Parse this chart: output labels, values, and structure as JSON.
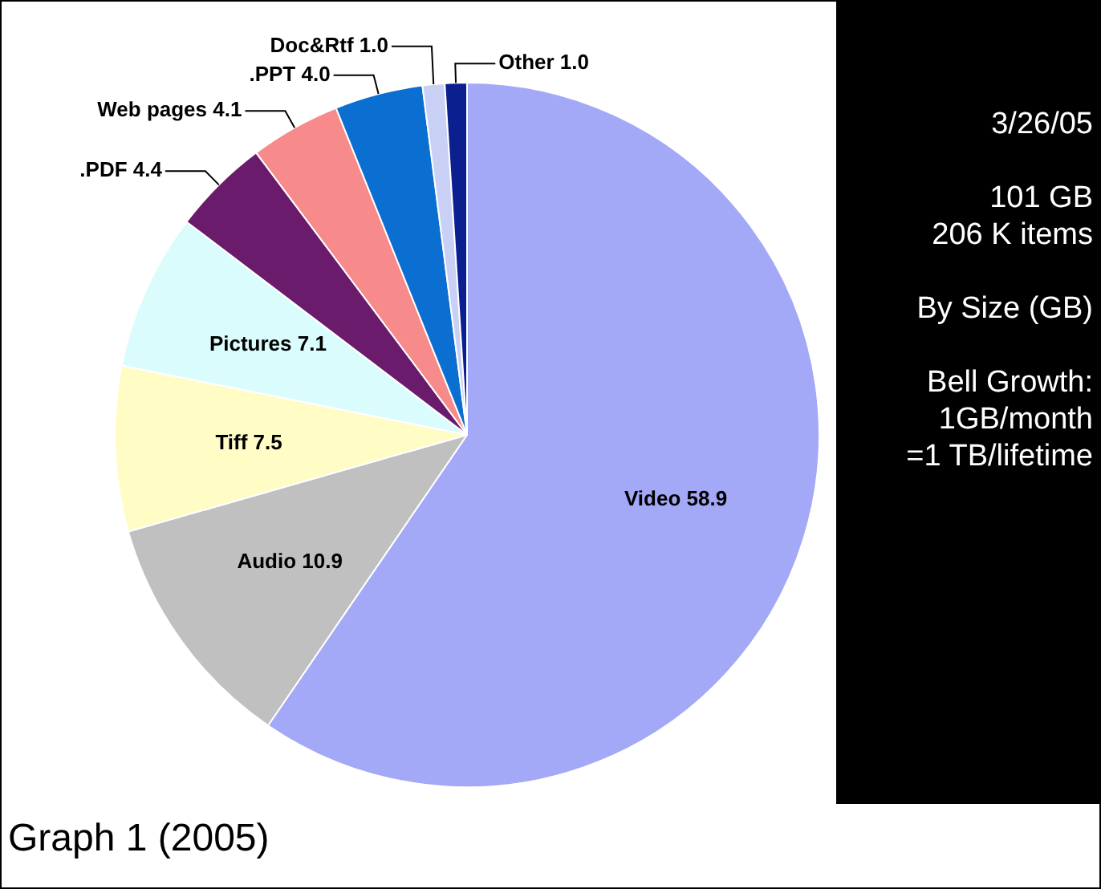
{
  "chart_data": {
    "type": "pie",
    "categories": [
      "Video",
      "Audio",
      "Tiff",
      "Pictures",
      ".PDF",
      "Web pages",
      ".PPT",
      "Doc&Rtf",
      "Other"
    ],
    "values": [
      58.9,
      10.9,
      7.5,
      7.1,
      4.4,
      4.1,
      4.0,
      1.0,
      1.0
    ],
    "colors": [
      "#a3a8f7",
      "#c0c0c0",
      "#fffcc6",
      "#dafcfc",
      "#6b1b6b",
      "#f78a8a",
      "#0a6fd0",
      "#c9d0f5",
      "#0b1f8f"
    ],
    "value_labels": [
      "58.9",
      "10.9",
      "7.5",
      "7.1",
      "4.4",
      "4.1",
      "4.0",
      "1.0",
      "1.0"
    ],
    "legend": false,
    "annotations": [
      "3/26/05",
      "101 GB\n206 K items",
      "By Size (GB)",
      "Bell Growth:\n1GB/month\n=1 TB/lifetime",
      "Graph 1 (2005)"
    ]
  }
}
